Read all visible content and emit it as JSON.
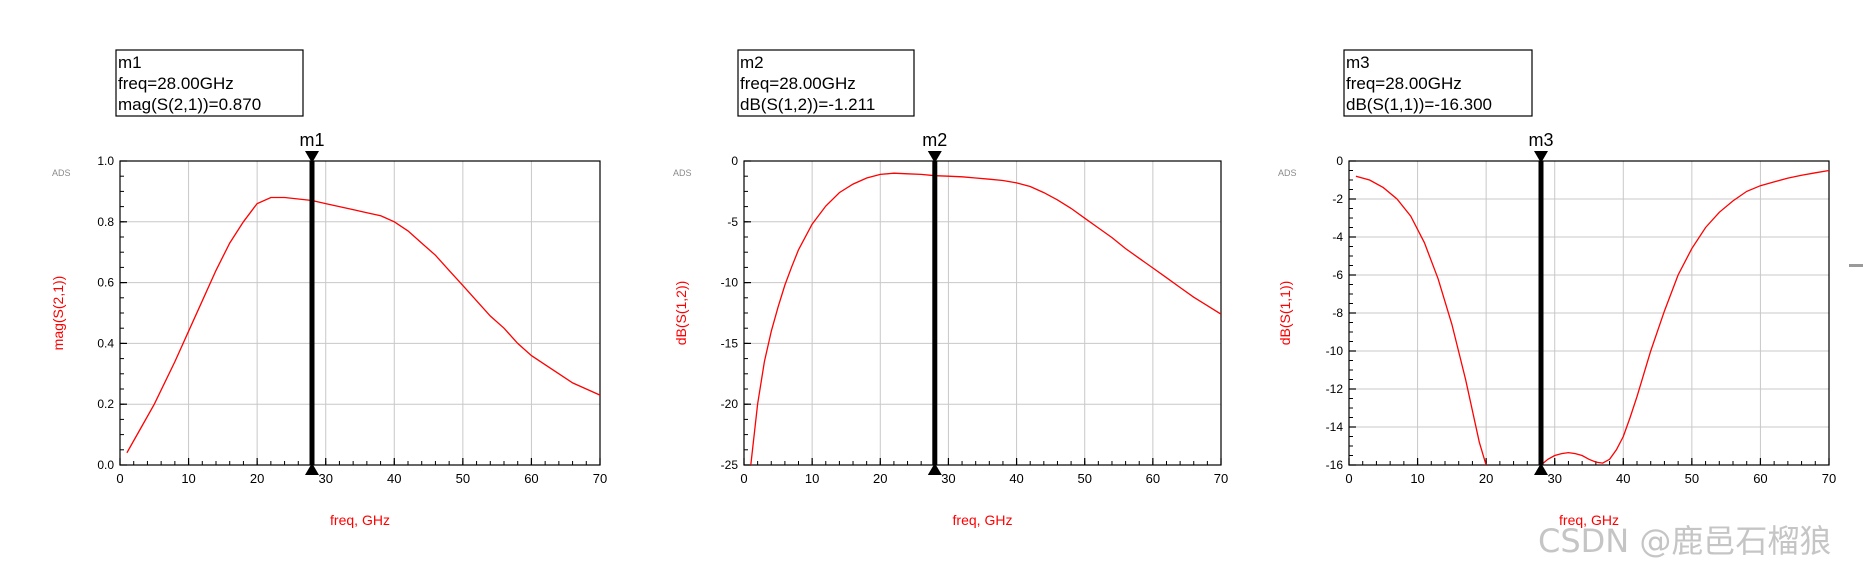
{
  "watermark": "CSDN @鹿邑石榴狼",
  "colors": {
    "trace": "#ff0000",
    "axis_label": "#ff0000",
    "marker": "#000000",
    "grid": "#c8c8c8"
  },
  "chart_data": [
    {
      "type": "line",
      "badge": "ADS",
      "xlabel": "freq, GHz",
      "ylabel": "mag(S(2,1))",
      "xlim": [
        0,
        70
      ],
      "ylim": [
        0,
        1
      ],
      "xticks": [
        "0",
        "10",
        "20",
        "30",
        "40",
        "50",
        "60",
        "70"
      ],
      "yticks": [
        "0.0",
        "0.2",
        "0.4",
        "0.6",
        "0.8",
        "1.0"
      ],
      "grid": true,
      "series": [
        {
          "x": [
            1,
            3,
            5,
            8,
            10,
            12,
            14,
            16,
            18,
            20,
            22,
            24,
            26,
            28,
            30,
            32,
            34,
            36,
            38,
            40,
            42,
            44,
            46,
            48,
            50,
            52,
            54,
            56,
            58,
            60,
            62,
            64,
            66,
            68,
            70
          ],
          "y": [
            0.04,
            0.12,
            0.2,
            0.34,
            0.44,
            0.54,
            0.64,
            0.73,
            0.8,
            0.86,
            0.88,
            0.88,
            0.875,
            0.87,
            0.86,
            0.85,
            0.84,
            0.83,
            0.82,
            0.8,
            0.77,
            0.73,
            0.69,
            0.64,
            0.59,
            0.54,
            0.49,
            0.45,
            0.4,
            0.36,
            0.33,
            0.3,
            0.27,
            0.25,
            0.23
          ]
        }
      ],
      "marker": {
        "name": "m1",
        "freq_text": "freq=28.00GHz",
        "value_text": "mag(S(2,1))=0.870",
        "x": 28,
        "y": 0.87
      }
    },
    {
      "type": "line",
      "badge": "ADS",
      "xlabel": "freq, GHz",
      "ylabel": "dB(S(1,2))",
      "xlim": [
        0,
        70
      ],
      "ylim": [
        -25,
        0
      ],
      "xticks": [
        "0",
        "10",
        "20",
        "30",
        "40",
        "50",
        "60",
        "70"
      ],
      "yticks": [
        "-25",
        "-20",
        "-15",
        "-10",
        "-5",
        "0"
      ],
      "grid": true,
      "series": [
        {
          "x": [
            1,
            2,
            3,
            4,
            5,
            6,
            7,
            8,
            10,
            12,
            14,
            16,
            18,
            20,
            22,
            24,
            26,
            28,
            30,
            32,
            34,
            36,
            38,
            40,
            42,
            44,
            46,
            48,
            50,
            52,
            54,
            56,
            58,
            60,
            62,
            64,
            66,
            68,
            70
          ],
          "y": [
            -25,
            -20,
            -16.5,
            -14,
            -12,
            -10.2,
            -8.7,
            -7.3,
            -5.2,
            -3.7,
            -2.6,
            -1.9,
            -1.4,
            -1.1,
            -1.0,
            -1.05,
            -1.1,
            -1.211,
            -1.25,
            -1.3,
            -1.4,
            -1.5,
            -1.6,
            -1.8,
            -2.1,
            -2.6,
            -3.2,
            -3.9,
            -4.7,
            -5.5,
            -6.3,
            -7.2,
            -8.0,
            -8.8,
            -9.6,
            -10.4,
            -11.2,
            -11.9,
            -12.6
          ]
        }
      ],
      "marker": {
        "name": "m2",
        "freq_text": "freq=28.00GHz",
        "value_text": "dB(S(1,2))=-1.211",
        "x": 28,
        "y": -1.211
      }
    },
    {
      "type": "line",
      "badge": "ADS",
      "xlabel": "freq, GHz",
      "ylabel": "dB(S(1,1))",
      "xlim": [
        0,
        70
      ],
      "ylim": [
        -16,
        0
      ],
      "xticks": [
        "0",
        "10",
        "20",
        "30",
        "40",
        "50",
        "60",
        "70"
      ],
      "yticks": [
        "-16",
        "-14",
        "-12",
        "-10",
        "-8",
        "-6",
        "-4",
        "-2",
        "0"
      ],
      "grid": true,
      "series": [
        {
          "x": [
            1,
            3,
            5,
            7,
            9,
            11,
            13,
            15,
            17,
            19,
            20
          ],
          "y": [
            -0.8,
            -1.0,
            -1.4,
            -2.0,
            -2.9,
            -4.3,
            -6.2,
            -8.6,
            -11.5,
            -14.8,
            -16
          ]
        },
        {
          "x": [
            28,
            29,
            30,
            31,
            32,
            33,
            34,
            35,
            36,
            37,
            38,
            39,
            40,
            41,
            42,
            44,
            46,
            48,
            50,
            52,
            54,
            56,
            58,
            60,
            62,
            64,
            66,
            68,
            70
          ],
          "y": [
            -16,
            -15.7,
            -15.5,
            -15.4,
            -15.35,
            -15.4,
            -15.5,
            -15.7,
            -15.85,
            -15.9,
            -15.7,
            -15.2,
            -14.5,
            -13.5,
            -12.4,
            -10.0,
            -7.9,
            -6.0,
            -4.6,
            -3.5,
            -2.7,
            -2.1,
            -1.6,
            -1.3,
            -1.1,
            -0.9,
            -0.75,
            -0.62,
            -0.5
          ]
        }
      ],
      "marker": {
        "name": "m3",
        "freq_text": "freq=28.00GHz",
        "value_text": "dB(S(1,1))=-16.300",
        "x": 28,
        "y": -16.3
      }
    }
  ]
}
